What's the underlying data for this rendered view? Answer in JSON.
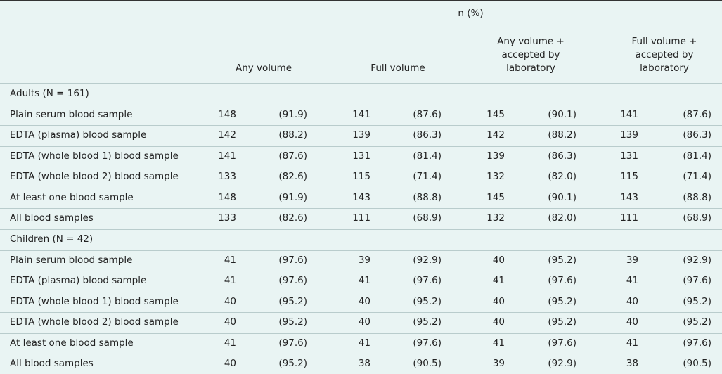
{
  "header": {
    "group_label": "n (%)",
    "columns": [
      "Any volume",
      "Full volume",
      "Any volume +\naccepted by\nlaboratory",
      "Full volume +\naccepted by\nlaboratory"
    ]
  },
  "sections": [
    {
      "label": "Adults (N = 161)",
      "rows": [
        {
          "label": "Plain serum blood sample",
          "cells": [
            [
              148,
              "(91.9)"
            ],
            [
              141,
              "(87.6)"
            ],
            [
              145,
              "(90.1)"
            ],
            [
              141,
              "(87.6)"
            ]
          ]
        },
        {
          "label": "EDTA (plasma) blood sample",
          "cells": [
            [
              142,
              "(88.2)"
            ],
            [
              139,
              "(86.3)"
            ],
            [
              142,
              "(88.2)"
            ],
            [
              139,
              "(86.3)"
            ]
          ]
        },
        {
          "label": "EDTA (whole blood 1) blood sample",
          "cells": [
            [
              141,
              "(87.6)"
            ],
            [
              131,
              "(81.4)"
            ],
            [
              139,
              "(86.3)"
            ],
            [
              131,
              "(81.4)"
            ]
          ]
        },
        {
          "label": "EDTA (whole blood 2) blood sample",
          "cells": [
            [
              133,
              "(82.6)"
            ],
            [
              115,
              "(71.4)"
            ],
            [
              132,
              "(82.0)"
            ],
            [
              115,
              "(71.4)"
            ]
          ]
        },
        {
          "label": "At least one blood sample",
          "cells": [
            [
              148,
              "(91.9)"
            ],
            [
              143,
              "(88.8)"
            ],
            [
              145,
              "(90.1)"
            ],
            [
              143,
              "(88.8)"
            ]
          ]
        },
        {
          "label": "All blood samples",
          "cells": [
            [
              133,
              "(82.6)"
            ],
            [
              111,
              "(68.9)"
            ],
            [
              132,
              "(82.0)"
            ],
            [
              111,
              "(68.9)"
            ]
          ]
        }
      ]
    },
    {
      "label": "Children (N = 42)",
      "rows": [
        {
          "label": "Plain serum blood sample",
          "cells": [
            [
              41,
              "(97.6)"
            ],
            [
              39,
              "(92.9)"
            ],
            [
              40,
              "(95.2)"
            ],
            [
              39,
              "(92.9)"
            ]
          ]
        },
        {
          "label": "EDTA (plasma) blood sample",
          "cells": [
            [
              41,
              "(97.6)"
            ],
            [
              41,
              "(97.6)"
            ],
            [
              41,
              "(97.6)"
            ],
            [
              41,
              "(97.6)"
            ]
          ]
        },
        {
          "label": "EDTA (whole blood 1) blood sample",
          "cells": [
            [
              40,
              "(95.2)"
            ],
            [
              40,
              "(95.2)"
            ],
            [
              40,
              "(95.2)"
            ],
            [
              40,
              "(95.2)"
            ]
          ]
        },
        {
          "label": "EDTA (whole blood 2) blood sample",
          "cells": [
            [
              40,
              "(95.2)"
            ],
            [
              40,
              "(95.2)"
            ],
            [
              40,
              "(95.2)"
            ],
            [
              40,
              "(95.2)"
            ]
          ]
        },
        {
          "label": "At least one blood sample",
          "cells": [
            [
              41,
              "(97.6)"
            ],
            [
              41,
              "(97.6)"
            ],
            [
              41,
              "(97.6)"
            ],
            [
              41,
              "(97.6)"
            ]
          ]
        },
        {
          "label": "All blood samples",
          "cells": [
            [
              40,
              "(95.2)"
            ],
            [
              38,
              "(90.5)"
            ],
            [
              39,
              "(92.9)"
            ],
            [
              38,
              "(90.5)"
            ]
          ]
        }
      ]
    }
  ]
}
